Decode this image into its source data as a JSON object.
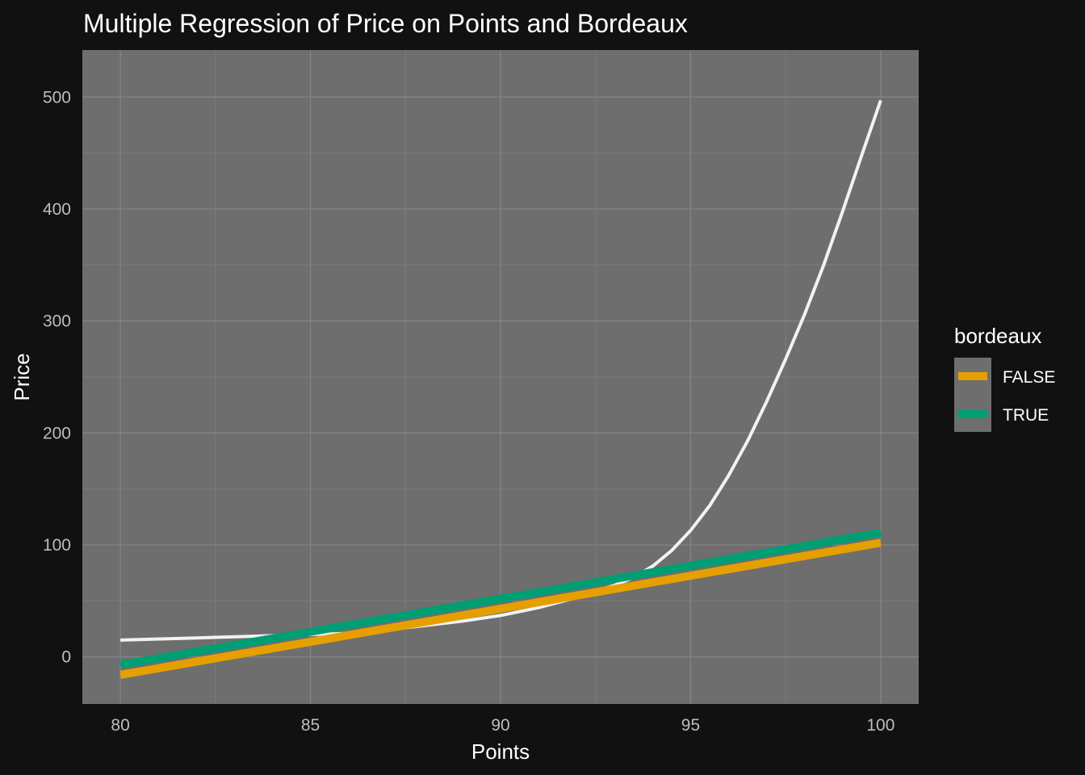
{
  "chart_data": {
    "type": "line",
    "title": "Multiple Regression of Price on Points and Bordeaux",
    "xlabel": "Points",
    "ylabel": "Price",
    "xlim": [
      79,
      101
    ],
    "ylim": [
      -42,
      542
    ],
    "xticks": [
      80,
      85,
      90,
      95,
      100
    ],
    "yticks": [
      0,
      100,
      200,
      300,
      400,
      500
    ],
    "grid": true,
    "legend": {
      "title": "bordeaux",
      "position": "right"
    },
    "series": [
      {
        "name": "",
        "color": "#f2f2f2",
        "x": [
          80,
          82,
          84,
          86,
          87,
          88,
          89,
          90,
          91,
          92,
          93,
          93.5,
          94,
          94.5,
          95,
          95.5,
          96,
          96.5,
          97,
          97.5,
          98,
          98.5,
          99,
          99.5,
          100
        ],
        "y": [
          15,
          17,
          19,
          21,
          24,
          28,
          32,
          37,
          44,
          53,
          64,
          71,
          81,
          95,
          113,
          135,
          162,
          193,
          228,
          266,
          306,
          350,
          398,
          448,
          497
        ]
      },
      {
        "name": "FALSE",
        "color": "#E69F00",
        "x": [
          80,
          100
        ],
        "y": [
          -16,
          102
        ]
      },
      {
        "name": "TRUE",
        "color": "#009E73",
        "x": [
          80,
          100
        ],
        "y": [
          -7,
          111
        ]
      }
    ]
  }
}
